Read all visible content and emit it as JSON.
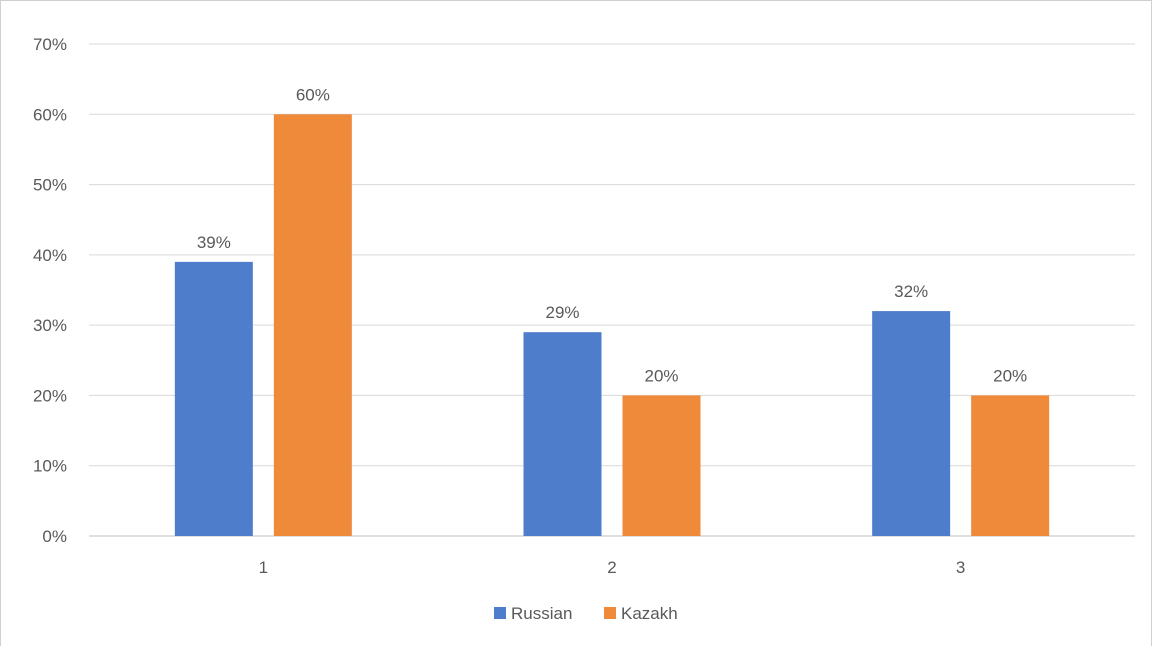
{
  "chart_data": {
    "type": "bar",
    "title": "",
    "xlabel": "",
    "ylabel": "",
    "categories": [
      "1",
      "2",
      "3"
    ],
    "series": [
      {
        "name": "Russian",
        "values": [
          39,
          29,
          32
        ],
        "labels": [
          "39%",
          "29%",
          "32%"
        ],
        "color": "#4e7ecb"
      },
      {
        "name": "Kazakh",
        "values": [
          60,
          20,
          20
        ],
        "labels": [
          "60%",
          "20%",
          "20%"
        ],
        "color": "#ef8a3b"
      }
    ],
    "ylim": [
      0,
      70
    ],
    "yticks": [
      0,
      10,
      20,
      30,
      40,
      50,
      60,
      70
    ],
    "ytick_labels": [
      "0%",
      "10%",
      "20%",
      "30%",
      "40%",
      "50%",
      "60%",
      "70%"
    ],
    "grid": true,
    "gridline_color": "#d9d9d9",
    "legend": "bottom"
  }
}
